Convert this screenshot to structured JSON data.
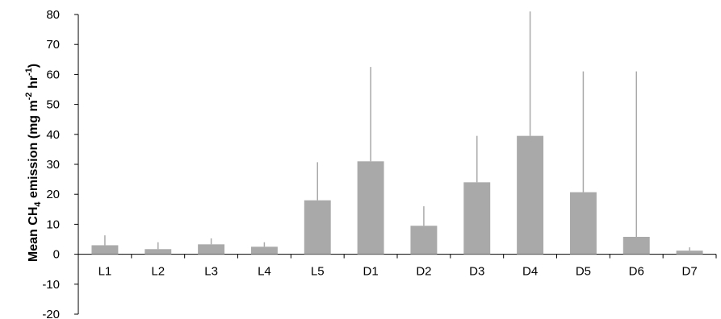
{
  "chart_data": {
    "type": "bar",
    "title": "",
    "xlabel": "",
    "ylabel_parts": {
      "main": "Mean CH",
      "sub": "4",
      "mid": " emission (mg m",
      "sup1": "-2",
      "mid2": " hr",
      "sup2": "-1",
      "end": ")"
    },
    "categories": [
      "L1",
      "L2",
      "L3",
      "L4",
      "L5",
      "D1",
      "D2",
      "D3",
      "D4",
      "D5",
      "D6",
      "D7"
    ],
    "values": [
      3.0,
      1.7,
      3.3,
      2.5,
      18.0,
      31.0,
      9.5,
      24.0,
      39.5,
      20.7,
      5.8,
      1.2
    ],
    "error_upper": [
      6.3,
      4.0,
      5.3,
      4.0,
      30.7,
      62.5,
      16.0,
      39.5,
      81.0,
      61.0,
      61.0,
      2.3
    ],
    "ylim": [
      -20,
      80
    ],
    "yticks": [
      -20,
      -10,
      0,
      10,
      20,
      30,
      40,
      50,
      60,
      70,
      80
    ],
    "grid": false,
    "legend": "none",
    "colors": {
      "bar": "#a9a9a9",
      "error": "#a9a9a9",
      "axis": "#000000"
    }
  }
}
